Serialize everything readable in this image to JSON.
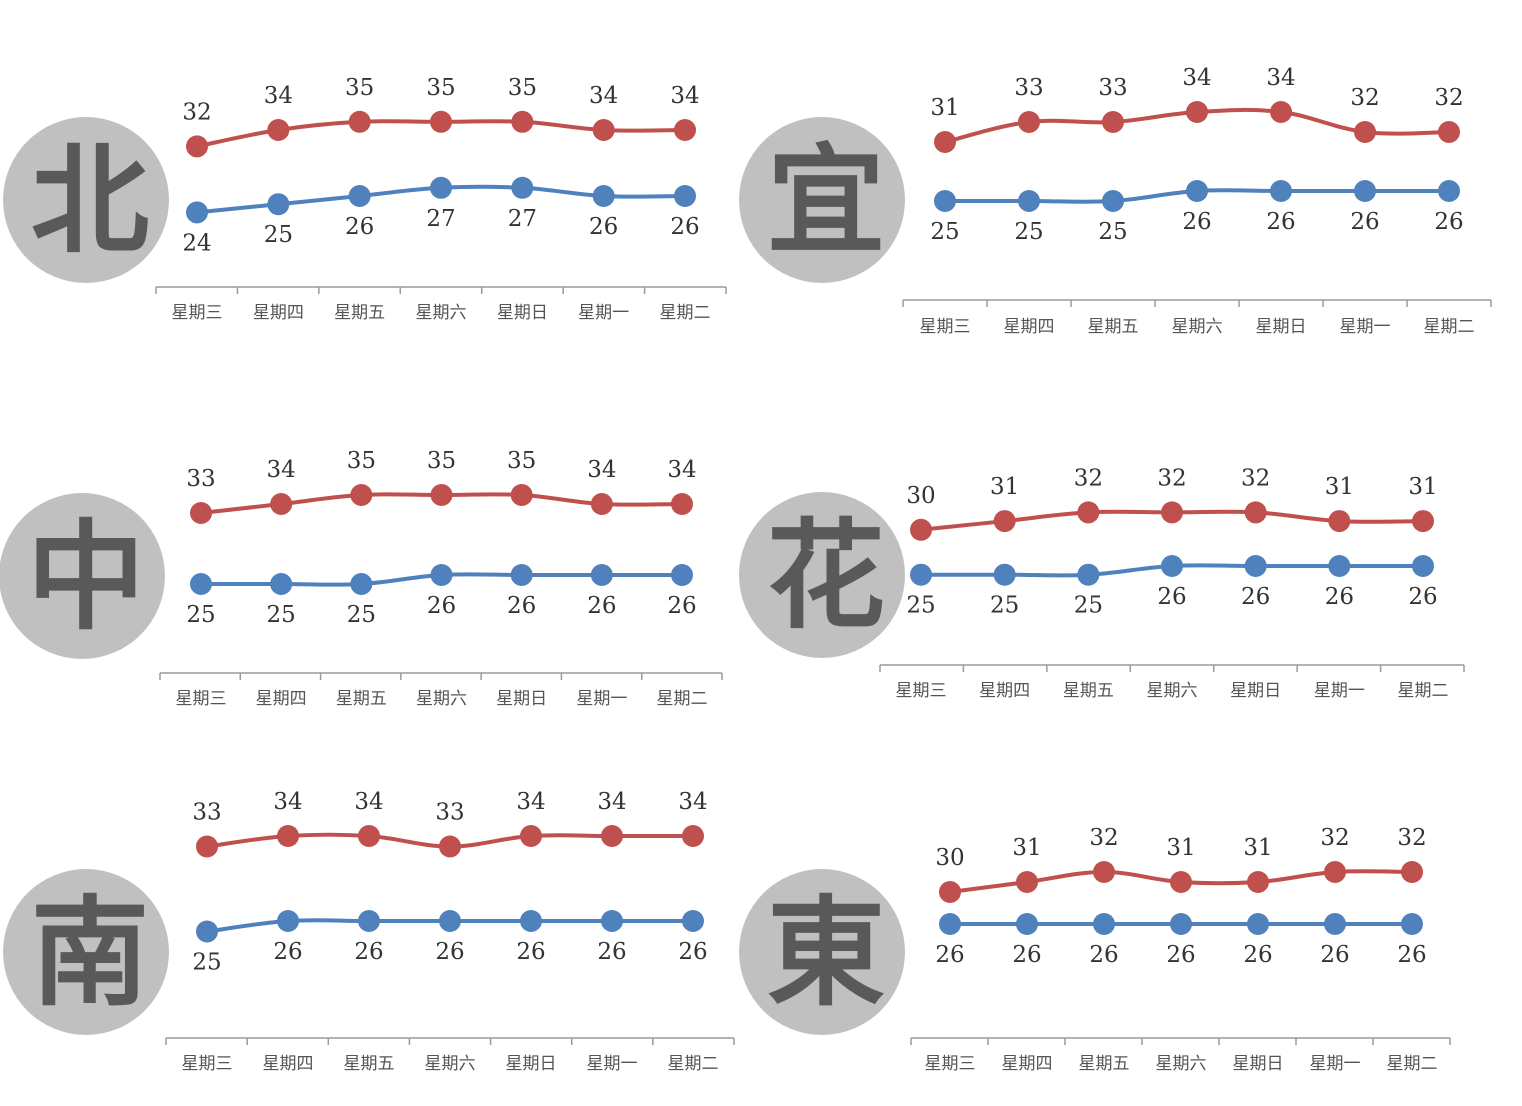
{
  "colors": {
    "high": "#c0504d",
    "low": "#4f81bd",
    "circle": "#c0c0c0",
    "region_text": "#595959"
  },
  "chart_data": [
    {
      "type": "line",
      "region": "北",
      "categories": [
        "星期三",
        "星期四",
        "星期五",
        "星期六",
        "星期日",
        "星期一",
        "星期二"
      ],
      "series": [
        {
          "values": [
            32,
            34,
            35,
            35,
            35,
            34,
            34
          ]
        },
        {
          "values": [
            24,
            25,
            26,
            27,
            27,
            26,
            26
          ]
        }
      ]
    },
    {
      "type": "line",
      "region": "宜",
      "categories": [
        "星期三",
        "星期四",
        "星期五",
        "星期六",
        "星期日",
        "星期一",
        "星期二"
      ],
      "series": [
        {
          "values": [
            31,
            33,
            33,
            34,
            34,
            32,
            32
          ]
        },
        {
          "values": [
            25,
            25,
            25,
            26,
            26,
            26,
            26
          ]
        }
      ]
    },
    {
      "type": "line",
      "region": "中",
      "categories": [
        "星期三",
        "星期四",
        "星期五",
        "星期六",
        "星期日",
        "星期一",
        "星期二"
      ],
      "series": [
        {
          "values": [
            33,
            34,
            35,
            35,
            35,
            34,
            34
          ]
        },
        {
          "values": [
            25,
            25,
            25,
            26,
            26,
            26,
            26
          ]
        }
      ]
    },
    {
      "type": "line",
      "region": "花",
      "categories": [
        "星期三",
        "星期四",
        "星期五",
        "星期六",
        "星期日",
        "星期一",
        "星期二"
      ],
      "series": [
        {
          "values": [
            30,
            31,
            32,
            32,
            32,
            31,
            31
          ]
        },
        {
          "values": [
            25,
            25,
            25,
            26,
            26,
            26,
            26
          ]
        }
      ]
    },
    {
      "type": "line",
      "region": "南",
      "categories": [
        "星期三",
        "星期四",
        "星期五",
        "星期六",
        "星期日",
        "星期一",
        "星期二"
      ],
      "series": [
        {
          "values": [
            33,
            34,
            34,
            33,
            34,
            34,
            34
          ]
        },
        {
          "values": [
            25,
            26,
            26,
            26,
            26,
            26,
            26
          ]
        }
      ]
    },
    {
      "type": "line",
      "region": "東",
      "categories": [
        "星期三",
        "星期四",
        "星期五",
        "星期六",
        "星期日",
        "星期一",
        "星期二"
      ],
      "series": [
        {
          "values": [
            30,
            31,
            32,
            31,
            31,
            32,
            32
          ]
        },
        {
          "values": [
            26,
            26,
            26,
            26,
            26,
            26,
            26
          ]
        }
      ]
    }
  ]
}
